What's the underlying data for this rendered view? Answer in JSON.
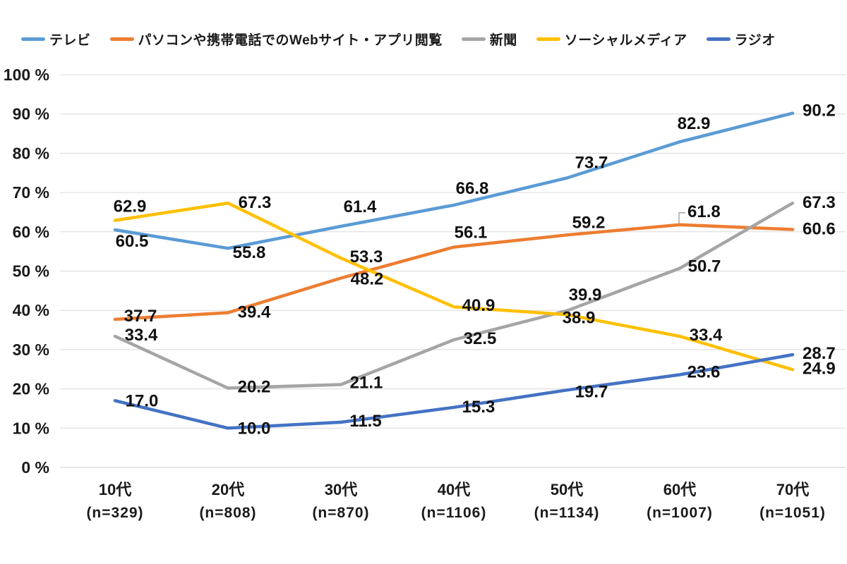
{
  "chart_data": {
    "type": "line",
    "title": "",
    "categories": [
      "10代",
      "20代",
      "30代",
      "40代",
      "50代",
      "60代",
      "70代"
    ],
    "category_sublabels": [
      "(n=329)",
      "(n=808)",
      "(n=870)",
      "(n=1106)",
      "(n=1134)",
      "(n=1007)",
      "(n=1051)"
    ],
    "series": [
      {
        "key": "tv",
        "name": "テレビ",
        "color": "#5B9BD5",
        "values": [
          60.5,
          55.8,
          61.4,
          66.8,
          73.7,
          82.9,
          90.2
        ]
      },
      {
        "key": "web",
        "name": "パソコンや携帯電話でのWebサイト・アプリ閲覧",
        "color": "#ED7D31",
        "values": [
          37.7,
          39.4,
          48.2,
          56.1,
          59.2,
          61.8,
          60.6
        ]
      },
      {
        "key": "newspaper",
        "name": "新聞",
        "color": "#A5A5A5",
        "values": [
          33.4,
          20.2,
          21.1,
          32.5,
          39.9,
          50.7,
          67.3
        ]
      },
      {
        "key": "social",
        "name": "ソーシャルメディア",
        "color": "#FFC000",
        "values": [
          62.9,
          67.3,
          53.3,
          40.9,
          38.9,
          33.4,
          24.9
        ]
      },
      {
        "key": "radio",
        "name": "ラジオ",
        "color": "#4472C4",
        "values": [
          17.0,
          10.0,
          11.5,
          15.3,
          19.7,
          23.6,
          28.7
        ]
      }
    ],
    "y_axis": {
      "min": 0,
      "max": 100,
      "step": 10,
      "tick_labels": [
        "0 %",
        "10 %",
        "20 %",
        "30 %",
        "40 %",
        "50 %",
        "60 %",
        "70 %",
        "80 %",
        "90 %",
        "100 %"
      ]
    },
    "grid": true,
    "legend_position": "top",
    "data_labels_decimals": 1,
    "callouts": [
      {
        "series_index": 1,
        "point_index": 5
      }
    ],
    "colors": {
      "gridline": "#D9D9D9",
      "axis_line": "#CCCCCC",
      "label_text": "#111111"
    }
  }
}
